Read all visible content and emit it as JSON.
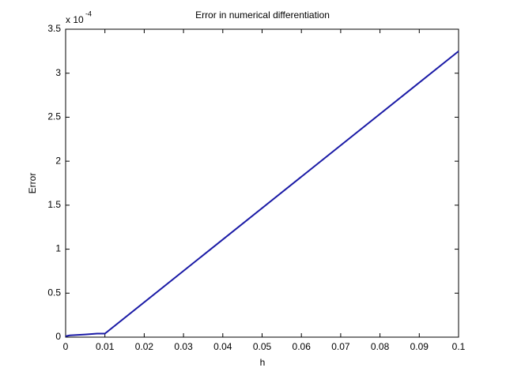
{
  "chart_data": {
    "type": "line",
    "title": "Error in numerical differentiation",
    "xlabel": "h",
    "ylabel": "Error",
    "y_multiplier": "x 10",
    "y_exponent": "-4",
    "x": [
      0,
      0.001,
      0.005,
      0.008,
      0.01,
      0.1
    ],
    "series": [
      {
        "name": "Error",
        "color": "#1a1aa6",
        "values": [
          0.01,
          0.02,
          0.03,
          0.04,
          0.04,
          3.25
        ]
      }
    ],
    "xlim": [
      0,
      0.1
    ],
    "xticks": [
      0,
      0.01,
      0.02,
      0.03,
      0.04,
      0.05,
      0.06,
      0.07,
      0.08,
      0.09,
      0.1
    ],
    "ylim": [
      0,
      3.5
    ],
    "yticks": [
      0,
      0.5,
      1,
      1.5,
      2,
      2.5,
      3,
      3.5
    ],
    "grid": false
  }
}
